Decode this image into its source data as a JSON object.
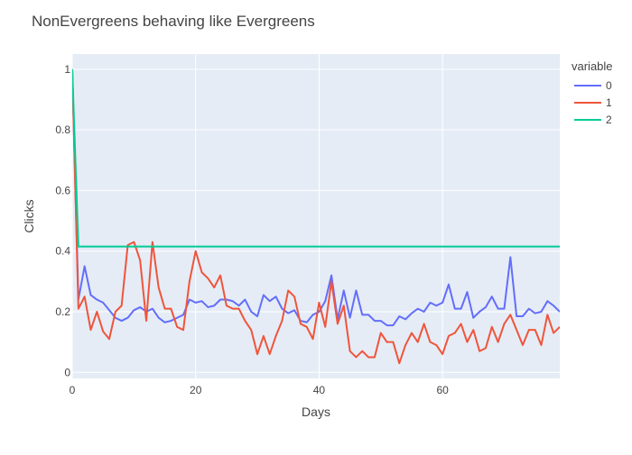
{
  "chart_data": {
    "type": "line",
    "title": "NonEvergreens behaving like Evergreens",
    "xlabel": "Days",
    "ylabel": "Clicks",
    "xlim": [
      0,
      79
    ],
    "ylim": [
      -0.02,
      1.05
    ],
    "x_ticks": [
      0,
      20,
      40,
      60
    ],
    "y_ticks": [
      0,
      0.2,
      0.4,
      0.6,
      0.8,
      1
    ],
    "x_tick_labels": [
      "0",
      "20",
      "40",
      "60"
    ],
    "y_tick_labels": [
      "0",
      "0.2",
      "0.4",
      "0.6",
      "0.8",
      "1"
    ],
    "grid": true,
    "legend": {
      "title": "variable",
      "position": "top-right"
    },
    "x": [
      0,
      1,
      2,
      3,
      4,
      5,
      6,
      7,
      8,
      9,
      10,
      11,
      12,
      13,
      14,
      15,
      16,
      17,
      18,
      19,
      20,
      21,
      22,
      23,
      24,
      25,
      26,
      27,
      28,
      29,
      30,
      31,
      32,
      33,
      34,
      35,
      36,
      37,
      38,
      39,
      40,
      41,
      42,
      43,
      44,
      45,
      46,
      47,
      48,
      49,
      50,
      51,
      52,
      53,
      54,
      55,
      56,
      57,
      58,
      59,
      60,
      61,
      62,
      63,
      64,
      65,
      66,
      67,
      68,
      69,
      70,
      71,
      72,
      73,
      74,
      75,
      76,
      77,
      78,
      79
    ],
    "series": [
      {
        "name": "0",
        "color": "#636efa",
        "values": [
          1.0,
          0.24,
          0.35,
          0.255,
          0.24,
          0.23,
          0.205,
          0.18,
          0.17,
          0.18,
          0.205,
          0.215,
          0.2,
          0.21,
          0.18,
          0.165,
          0.17,
          0.18,
          0.19,
          0.24,
          0.23,
          0.235,
          0.215,
          0.22,
          0.24,
          0.24,
          0.235,
          0.22,
          0.24,
          0.2,
          0.185,
          0.255,
          0.235,
          0.25,
          0.21,
          0.195,
          0.205,
          0.17,
          0.165,
          0.19,
          0.2,
          0.235,
          0.32,
          0.175,
          0.27,
          0.18,
          0.27,
          0.19,
          0.19,
          0.17,
          0.17,
          0.155,
          0.155,
          0.185,
          0.175,
          0.195,
          0.21,
          0.2,
          0.23,
          0.22,
          0.23,
          0.29,
          0.21,
          0.21,
          0.265,
          0.18,
          0.2,
          0.215,
          0.25,
          0.21,
          0.21,
          0.38,
          0.185,
          0.185,
          0.21,
          0.195,
          0.2,
          0.235,
          0.22,
          0.2
        ]
      },
      {
        "name": "1",
        "color": "#ef553b",
        "values": [
          1.0,
          0.21,
          0.25,
          0.14,
          0.2,
          0.135,
          0.11,
          0.2,
          0.22,
          0.42,
          0.43,
          0.37,
          0.17,
          0.43,
          0.28,
          0.21,
          0.21,
          0.15,
          0.14,
          0.3,
          0.4,
          0.33,
          0.31,
          0.28,
          0.32,
          0.22,
          0.21,
          0.21,
          0.17,
          0.14,
          0.06,
          0.12,
          0.06,
          0.12,
          0.17,
          0.27,
          0.25,
          0.16,
          0.15,
          0.11,
          0.23,
          0.15,
          0.3,
          0.16,
          0.22,
          0.07,
          0.05,
          0.07,
          0.05,
          0.05,
          0.13,
          0.1,
          0.1,
          0.03,
          0.09,
          0.13,
          0.1,
          0.16,
          0.1,
          0.09,
          0.06,
          0.12,
          0.13,
          0.16,
          0.1,
          0.14,
          0.07,
          0.08,
          0.15,
          0.1,
          0.16,
          0.19,
          0.14,
          0.09,
          0.14,
          0.14,
          0.09,
          0.19,
          0.13,
          0.15
        ]
      },
      {
        "name": "2",
        "color": "#00cc96",
        "values": [
          1.0,
          0.415,
          0.415,
          0.415,
          0.415,
          0.415,
          0.415,
          0.415,
          0.415,
          0.415,
          0.415,
          0.415,
          0.415,
          0.415,
          0.415,
          0.415,
          0.415,
          0.415,
          0.415,
          0.415,
          0.415,
          0.415,
          0.415,
          0.415,
          0.415,
          0.415,
          0.415,
          0.415,
          0.415,
          0.415,
          0.415,
          0.415,
          0.415,
          0.415,
          0.415,
          0.415,
          0.415,
          0.415,
          0.415,
          0.415,
          0.415,
          0.415,
          0.415,
          0.415,
          0.415,
          0.415,
          0.415,
          0.415,
          0.415,
          0.415,
          0.415,
          0.415,
          0.415,
          0.415,
          0.415,
          0.415,
          0.415,
          0.415,
          0.415,
          0.415,
          0.415,
          0.415,
          0.415,
          0.415,
          0.415,
          0.415,
          0.415,
          0.415,
          0.415,
          0.415,
          0.415,
          0.415,
          0.415,
          0.415,
          0.415,
          0.415,
          0.415,
          0.415,
          0.415,
          0.415
        ]
      }
    ]
  },
  "colors": {
    "plot_background": "#e5ecf6",
    "grid": "#ffffff"
  }
}
